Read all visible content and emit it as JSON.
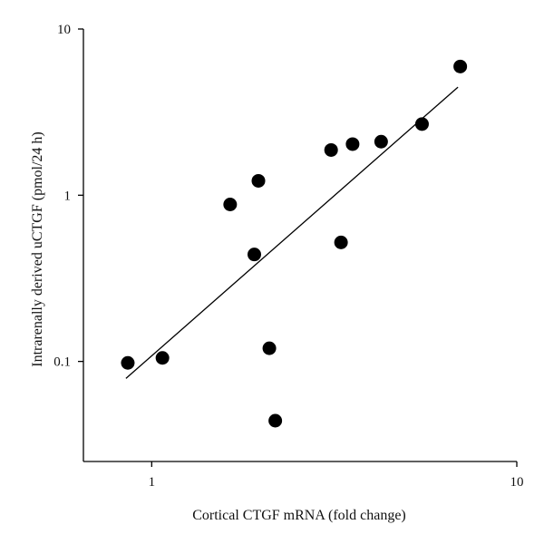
{
  "chart_data": {
    "type": "scatter",
    "title": "",
    "xlabel": "Cortical CTGF mRNA (fold change)",
    "ylabel": "Intrarenally derived uCTGF (pmol/24 h)",
    "x_scale": "log",
    "y_scale": "log",
    "xlim": [
      0.65,
      10
    ],
    "ylim": [
      0.025,
      10
    ],
    "x_ticks": [
      {
        "value": 1,
        "label": "1"
      },
      {
        "value": 10,
        "label": "10"
      }
    ],
    "y_ticks": [
      {
        "value": 0.1,
        "label": "0.1"
      },
      {
        "value": 1,
        "label": "1"
      },
      {
        "value": 10,
        "label": "10"
      }
    ],
    "grid": false,
    "legend": "none",
    "colors": {
      "points": "#000000",
      "line": "#000000",
      "axes": "#000000"
    },
    "series": [
      {
        "points": [
          {
            "x": 0.86,
            "y": 0.098
          },
          {
            "x": 1.07,
            "y": 0.105
          },
          {
            "x": 1.64,
            "y": 0.88
          },
          {
            "x": 1.91,
            "y": 0.44
          },
          {
            "x": 1.96,
            "y": 1.22
          },
          {
            "x": 2.1,
            "y": 0.12
          },
          {
            "x": 2.18,
            "y": 0.044
          },
          {
            "x": 3.1,
            "y": 1.87
          },
          {
            "x": 3.3,
            "y": 0.52
          },
          {
            "x": 3.55,
            "y": 2.03
          },
          {
            "x": 4.25,
            "y": 2.1
          },
          {
            "x": 5.5,
            "y": 2.68
          },
          {
            "x": 7.0,
            "y": 5.95
          }
        ]
      }
    ],
    "trendline": {
      "x": [
        0.85,
        6.9
      ],
      "y": [
        0.079,
        4.47
      ]
    }
  }
}
